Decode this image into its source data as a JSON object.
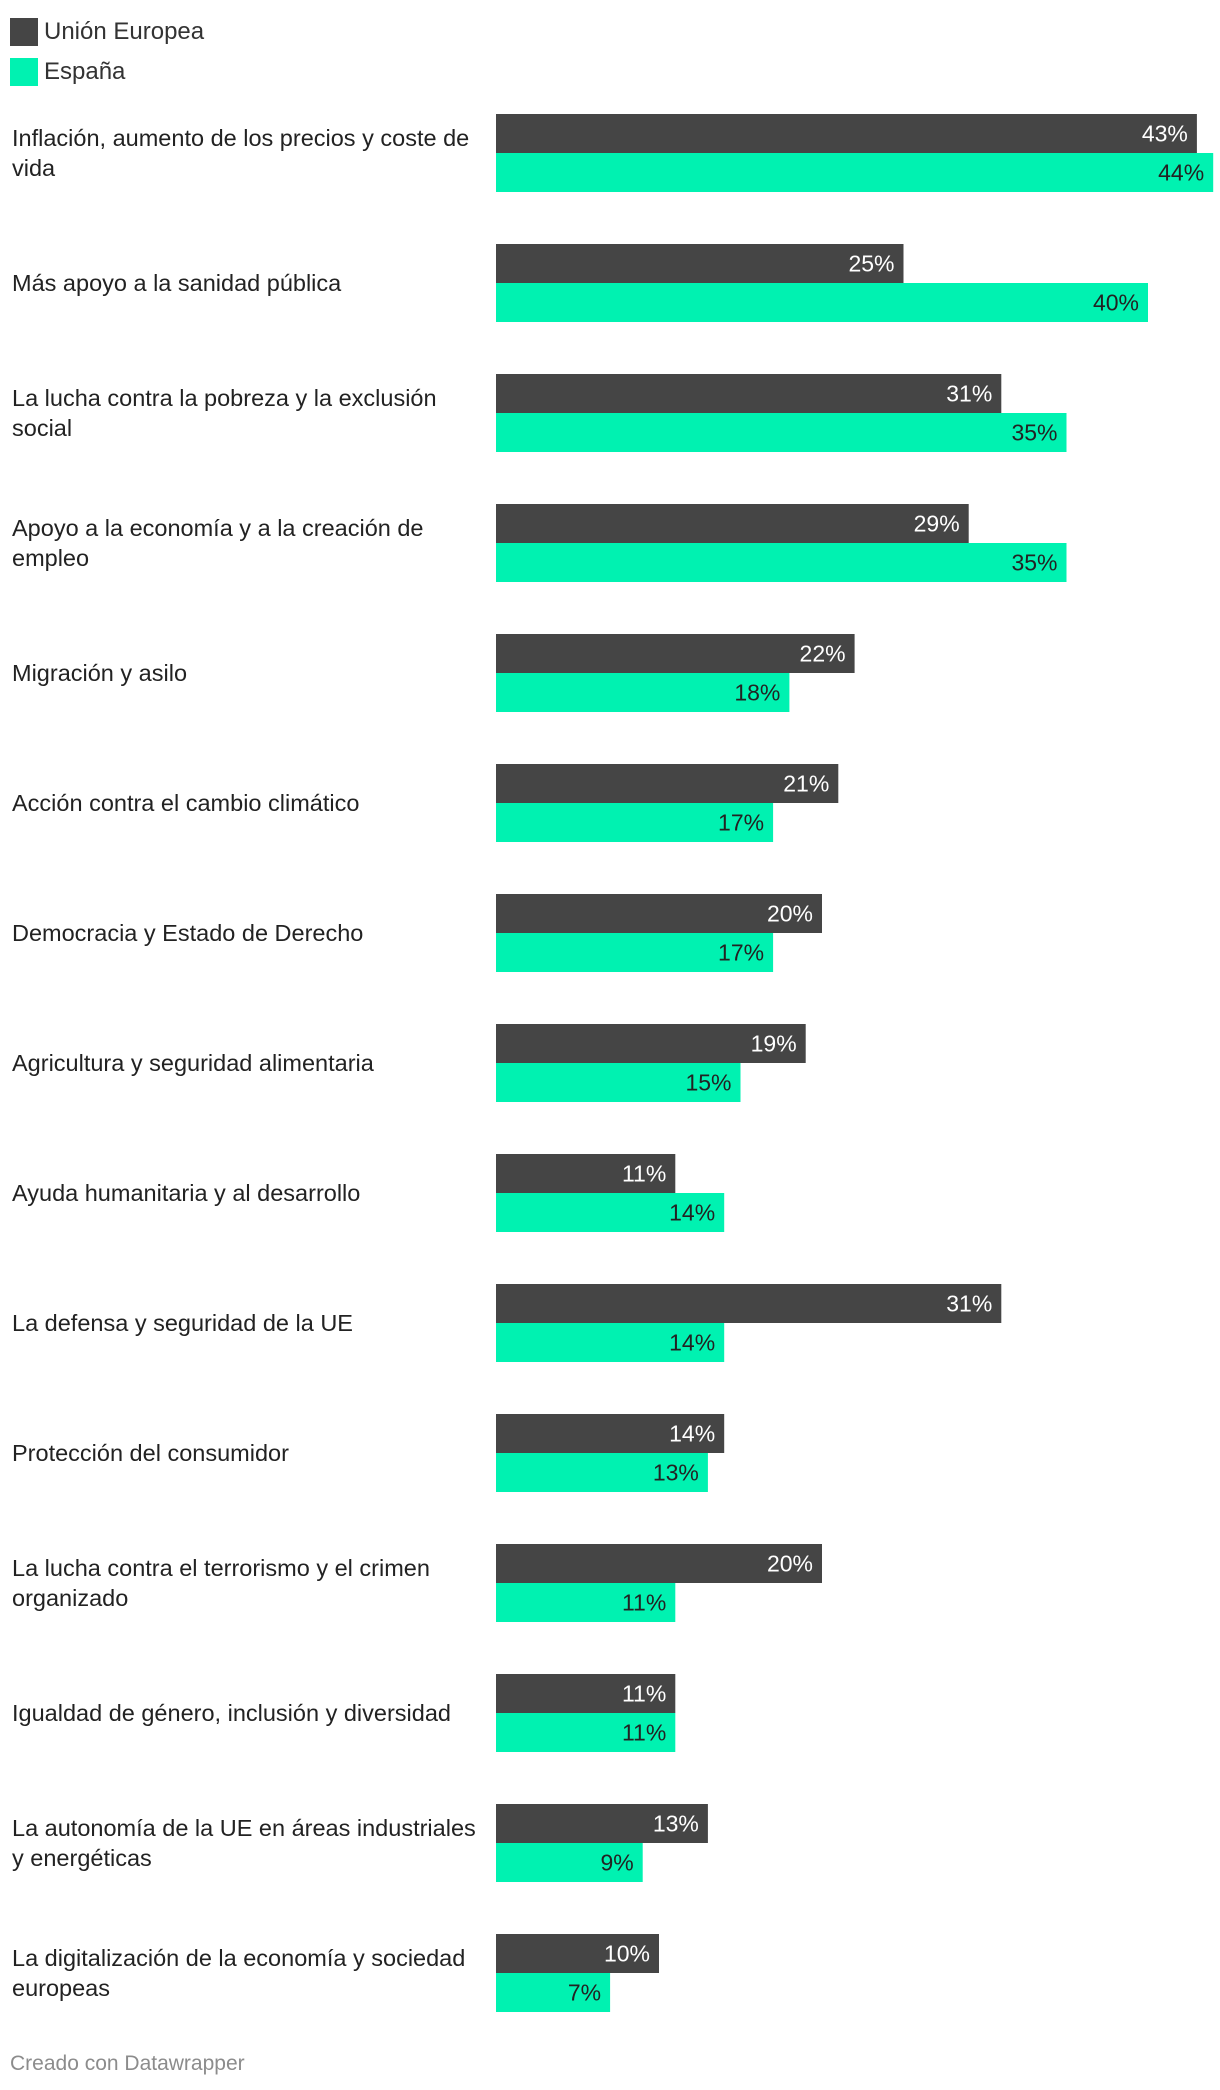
{
  "colors": {
    "eu": "#454545",
    "es": "#00f2b1"
  },
  "chart_data": {
    "type": "bar",
    "orientation": "horizontal",
    "legend_position": "top-left",
    "value_suffix": "%",
    "xlim": [
      0,
      44
    ],
    "categories": [
      "Inflación, aumento de los precios y coste de vida",
      "Más apoyo a la sanidad pública",
      "La lucha contra la pobreza y la exclusión social",
      "Apoyo a la economía y a la creación de empleo",
      "Migración y asilo",
      "Acción contra el cambio climático",
      "Democracia y Estado de Derecho",
      "Agricultura y seguridad alimentaria",
      "Ayuda humanitaria y al desarrollo",
      "La defensa y seguridad de la UE",
      "Protección del consumidor",
      "La lucha contra el terrorismo y el crimen organizado",
      "Igualdad de género, inclusión y diversidad",
      "La autonomía de la UE en áreas industriales y energéticas",
      "La digitalización de la economía y sociedad europeas"
    ],
    "series": [
      {
        "name": "Unión Europea",
        "values": [
          43,
          25,
          31,
          29,
          22,
          21,
          20,
          19,
          11,
          31,
          14,
          20,
          11,
          13,
          10
        ]
      },
      {
        "name": "España",
        "values": [
          44,
          40,
          35,
          35,
          18,
          17,
          17,
          15,
          14,
          14,
          13,
          11,
          11,
          9,
          7
        ]
      }
    ]
  },
  "credit": "Creado con Datawrapper"
}
